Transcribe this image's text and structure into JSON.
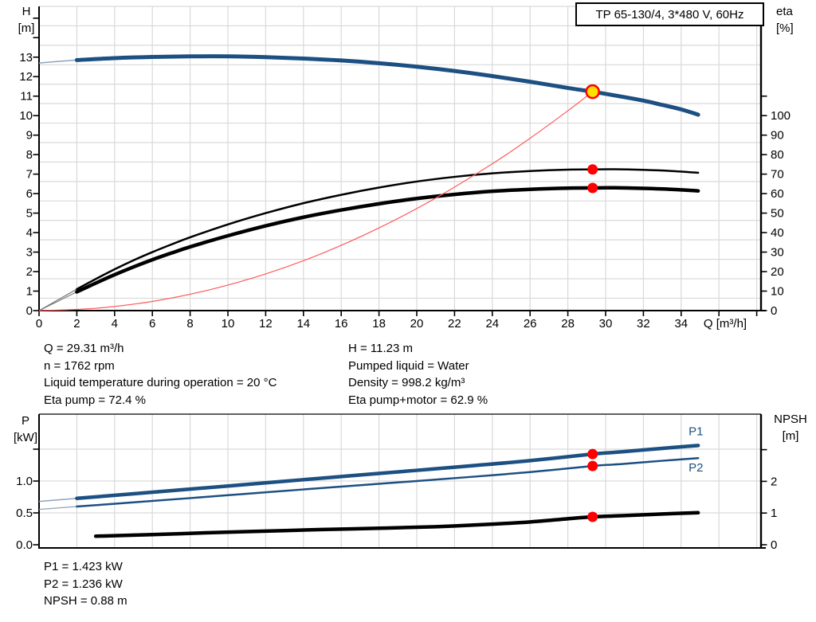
{
  "title_box": {
    "text": "TP 65-130/4, 3*480 V, 60Hz"
  },
  "colors": {
    "blue": "#1c4f82",
    "thin_blue": "#8fa3b8",
    "black": "#000000",
    "thin_gray": "#7a7a7a",
    "red": "#ff0000",
    "red_line": "#ff5a5a",
    "yellow": "#ffe000",
    "grid": "#d9d9d9"
  },
  "axis_titles": {
    "top_left": [
      "H",
      "[m]"
    ],
    "top_right": [
      "eta",
      "[%]"
    ],
    "bottom_left": [
      "P",
      "[kW]"
    ],
    "bottom_right": [
      "NPSH",
      "[m]"
    ],
    "x": "Q [m³/h]"
  },
  "info_top": {
    "left": [
      "Q = 29.31 m³/h",
      "n = 1762 rpm",
      "Liquid temperature during operation = 20 °C",
      "Eta pump = 72.4 %"
    ],
    "right": [
      "H = 11.23 m",
      "Pumped liquid = Water",
      "Density = 998.2 kg/m³",
      "Eta pump+motor = 62.9 %"
    ]
  },
  "info_bottom": [
    "P1 = 1.423 kW",
    "P2 = 1.236 kW",
    "NPSH = 0.88 m"
  ],
  "chart_data": [
    {
      "type": "line",
      "title": "TP 65-130/4, 3*480 V, 60Hz",
      "x_axis": {
        "label": "Q [m³/h]",
        "range": [
          0,
          38.2
        ],
        "labeled_ticks": [
          {
            "v": 0,
            "t": "0"
          },
          {
            "v": 2,
            "t": "2"
          },
          {
            "v": 4,
            "t": "4"
          },
          {
            "v": 6,
            "t": "6"
          },
          {
            "v": 8,
            "t": "8"
          },
          {
            "v": 10,
            "t": "10"
          },
          {
            "v": 12,
            "t": "12"
          },
          {
            "v": 14,
            "t": "14"
          },
          {
            "v": 16,
            "t": "16"
          },
          {
            "v": 18,
            "t": "18"
          },
          {
            "v": 20,
            "t": "20"
          },
          {
            "v": 22,
            "t": "22"
          },
          {
            "v": 24,
            "t": "24"
          },
          {
            "v": 26,
            "t": "26"
          },
          {
            "v": 28,
            "t": "28"
          },
          {
            "v": 30,
            "t": "30"
          },
          {
            "v": 32,
            "t": "32"
          },
          {
            "v": 34,
            "t": "34"
          }
        ],
        "unlabeled_ticks": [
          36,
          38
        ]
      },
      "left_axis": {
        "label": "H [m]",
        "range": [
          0,
          15.6
        ],
        "labeled_ticks": [
          {
            "v": 0,
            "t": "0"
          },
          {
            "v": 1,
            "t": "1"
          },
          {
            "v": 2,
            "t": "2"
          },
          {
            "v": 3,
            "t": "3"
          },
          {
            "v": 4,
            "t": "4"
          },
          {
            "v": 5,
            "t": "5"
          },
          {
            "v": 6,
            "t": "6"
          },
          {
            "v": 7,
            "t": "7"
          },
          {
            "v": 8,
            "t": "8"
          },
          {
            "v": 9,
            "t": "9"
          },
          {
            "v": 10,
            "t": "10"
          },
          {
            "v": 11,
            "t": "11"
          },
          {
            "v": 12,
            "t": "12"
          },
          {
            "v": 13,
            "t": "13"
          }
        ],
        "unlabeled_ticks": [
          14,
          15
        ]
      },
      "right_axis": {
        "label": "eta [%]",
        "range": [
          0,
          156
        ],
        "labeled_ticks": [
          {
            "v": 0,
            "t": "0"
          },
          {
            "v": 10,
            "t": "10"
          },
          {
            "v": 20,
            "t": "20"
          },
          {
            "v": 30,
            "t": "30"
          },
          {
            "v": 40,
            "t": "40"
          },
          {
            "v": 50,
            "t": "50"
          },
          {
            "v": 60,
            "t": "60"
          },
          {
            "v": 70,
            "t": "70"
          },
          {
            "v": 80,
            "t": "80"
          },
          {
            "v": 90,
            "t": "90"
          },
          {
            "v": 100,
            "t": "100"
          }
        ],
        "unlabeled_ticks": [
          110
        ]
      },
      "series": [
        {
          "id": "h-curve",
          "name": "H (head)",
          "axis": "left",
          "color_key": "blue",
          "width": 5,
          "lead_thin": {
            "until": 2,
            "color_key": "thin_blue",
            "width": 1.5
          },
          "points": [
            [
              0,
              12.7
            ],
            [
              1,
              12.78
            ],
            [
              2,
              12.85
            ],
            [
              4,
              12.95
            ],
            [
              6,
              13.01
            ],
            [
              8,
              13.04
            ],
            [
              10,
              13.04
            ],
            [
              12,
              13.0
            ],
            [
              14,
              12.93
            ],
            [
              16,
              12.83
            ],
            [
              18,
              12.69
            ],
            [
              20,
              12.51
            ],
            [
              22,
              12.29
            ],
            [
              24,
              12.03
            ],
            [
              26,
              11.74
            ],
            [
              28,
              11.42
            ],
            [
              29.31,
              11.23
            ],
            [
              31,
              10.95
            ],
            [
              32,
              10.77
            ],
            [
              33,
              10.55
            ],
            [
              34,
              10.32
            ],
            [
              34.9,
              10.05
            ]
          ]
        },
        {
          "id": "eta-pump-curve",
          "name": "Eta pump",
          "axis": "right",
          "color_key": "black",
          "width": 2.5,
          "lead_thin": {
            "until": 2,
            "color_key": "thin_gray",
            "width": 1.2
          },
          "points": [
            [
              0,
              0
            ],
            [
              1,
              5.5
            ],
            [
              2,
              11
            ],
            [
              3,
              16.2
            ],
            [
              4,
              21.2
            ],
            [
              5,
              25.8
            ],
            [
              6,
              30
            ],
            [
              7,
              33.9
            ],
            [
              8,
              37.6
            ],
            [
              10,
              44.2
            ],
            [
              12,
              50
            ],
            [
              14,
              55.1
            ],
            [
              16,
              59.4
            ],
            [
              18,
              63.1
            ],
            [
              20,
              66.2
            ],
            [
              22,
              68.6
            ],
            [
              24,
              70.4
            ],
            [
              26,
              71.6
            ],
            [
              28,
              72.3
            ],
            [
              29.31,
              72.4
            ],
            [
              30.5,
              72.5
            ],
            [
              32,
              72.2
            ],
            [
              33.5,
              71.6
            ],
            [
              34.9,
              70.7
            ]
          ]
        },
        {
          "id": "eta-pump-motor-curve",
          "name": "Eta pump+motor",
          "axis": "right",
          "color_key": "black",
          "width": 4.5,
          "lead_thin": {
            "until": 2,
            "color_key": "thin_gray",
            "width": 1.2
          },
          "points": [
            [
              0,
              0
            ],
            [
              1,
              4.8
            ],
            [
              2,
              9.6
            ],
            [
              3,
              14.1
            ],
            [
              4,
              18.4
            ],
            [
              5,
              22.4
            ],
            [
              6,
              26.1
            ],
            [
              7,
              29.5
            ],
            [
              8,
              32.7
            ],
            [
              10,
              38.4
            ],
            [
              12,
              43.5
            ],
            [
              14,
              47.9
            ],
            [
              16,
              51.6
            ],
            [
              18,
              54.8
            ],
            [
              20,
              57.5
            ],
            [
              22,
              59.6
            ],
            [
              24,
              61.2
            ],
            [
              26,
              62.2
            ],
            [
              28,
              62.8
            ],
            [
              29.31,
              62.9
            ],
            [
              30.5,
              63.0
            ],
            [
              32,
              62.7
            ],
            [
              33.5,
              62.2
            ],
            [
              34.9,
              61.4
            ]
          ]
        },
        {
          "id": "system-curve",
          "name": "System curve",
          "axis": "left",
          "color_key": "red_line",
          "width": 1.2,
          "points": [
            [
              0,
              0
            ],
            [
              3,
              0.12
            ],
            [
              6,
              0.47
            ],
            [
              9,
              1.06
            ],
            [
              12,
              1.88
            ],
            [
              15,
              2.94
            ],
            [
              18,
              4.24
            ],
            [
              21,
              5.77
            ],
            [
              24,
              7.53
            ],
            [
              26,
              8.84
            ],
            [
              28,
              10.25
            ],
            [
              29.31,
              11.23
            ]
          ]
        }
      ],
      "markers": [
        {
          "id": "duty-point-marker",
          "style": "duty",
          "q": 29.31,
          "v": 11.23,
          "axis": "left"
        },
        {
          "id": "eta-pump-point",
          "style": "dot",
          "q": 29.31,
          "v": 72.4,
          "axis": "right"
        },
        {
          "id": "eta-pump-motor-point",
          "style": "dot",
          "q": 29.31,
          "v": 62.9,
          "axis": "right"
        }
      ]
    },
    {
      "type": "line",
      "x_axis": {
        "label": "",
        "range": [
          0,
          38.2
        ],
        "labeled_ticks": [],
        "unlabeled_ticks": []
      },
      "left_axis": {
        "label": "P [kW]",
        "range": [
          0,
          2.05
        ],
        "labeled_ticks": [
          {
            "v": 0,
            "t": "0.0"
          },
          {
            "v": 0.5,
            "t": "0.5"
          },
          {
            "v": 1,
            "t": "1.0"
          }
        ],
        "unlabeled_ticks": [
          1.5
        ]
      },
      "right_axis": {
        "label": "NPSH [m]",
        "range": [
          0,
          4.1
        ],
        "labeled_ticks": [
          {
            "v": 0,
            "t": "0"
          },
          {
            "v": 1,
            "t": "1"
          },
          {
            "v": 2,
            "t": "2"
          }
        ],
        "unlabeled_ticks": [
          3
        ]
      },
      "series": [
        {
          "id": "p1-curve",
          "name": "P1",
          "axis": "left",
          "color_key": "blue",
          "width": 4.5,
          "label": "P1",
          "label_dy": -13,
          "lead_thin": {
            "until": 2,
            "color_key": "thin_blue",
            "width": 1.5
          },
          "points": [
            [
              0,
              0.68
            ],
            [
              2,
              0.728
            ],
            [
              5,
              0.8
            ],
            [
              8,
              0.873
            ],
            [
              11,
              0.947
            ],
            [
              14,
              1.021
            ],
            [
              17,
              1.095
            ],
            [
              20,
              1.168
            ],
            [
              23,
              1.242
            ],
            [
              26,
              1.32
            ],
            [
              29.31,
              1.423
            ],
            [
              31,
              1.462
            ],
            [
              33,
              1.513
            ],
            [
              34.9,
              1.558
            ]
          ]
        },
        {
          "id": "p2-curve",
          "name": "P2",
          "axis": "left",
          "color_key": "blue",
          "width": 2.5,
          "label": "P2",
          "label_dy": 17,
          "lead_thin": {
            "until": 2,
            "color_key": "thin_blue",
            "width": 1.2
          },
          "points": [
            [
              0,
              0.555
            ],
            [
              2,
              0.6
            ],
            [
              5,
              0.665
            ],
            [
              8,
              0.732
            ],
            [
              11,
              0.8
            ],
            [
              14,
              0.868
            ],
            [
              17,
              0.935
            ],
            [
              20,
              1.0
            ],
            [
              23,
              1.068
            ],
            [
              26,
              1.14
            ],
            [
              29.31,
              1.236
            ],
            [
              31,
              1.27
            ],
            [
              33,
              1.318
            ],
            [
              34.9,
              1.36
            ]
          ]
        },
        {
          "id": "npsh-curve",
          "name": "NPSH",
          "axis": "right",
          "color_key": "black",
          "width": 4.5,
          "lead_thin": {
            "until": 2,
            "color_key": "thin_gray",
            "width": 1.2
          },
          "points": [
            [
              0,
              0.22
            ],
            [
              3,
              0.27
            ],
            [
              6,
              0.32
            ],
            [
              9,
              0.38
            ],
            [
              12,
              0.43
            ],
            [
              15,
              0.48
            ],
            [
              18,
              0.52
            ],
            [
              21,
              0.57
            ],
            [
              24,
              0.65
            ],
            [
              26,
              0.72
            ],
            [
              28,
              0.82
            ],
            [
              29.31,
              0.88
            ],
            [
              31,
              0.92
            ],
            [
              33,
              0.97
            ],
            [
              34.9,
              1.01
            ]
          ]
        }
      ],
      "markers": [
        {
          "id": "p1-point",
          "style": "dot",
          "q": 29.31,
          "v": 1.423,
          "axis": "left"
        },
        {
          "id": "p2-point",
          "style": "dot",
          "q": 29.31,
          "v": 1.236,
          "axis": "left"
        },
        {
          "id": "npsh-point",
          "style": "dot",
          "q": 29.31,
          "v": 0.88,
          "axis": "right"
        }
      ]
    }
  ]
}
